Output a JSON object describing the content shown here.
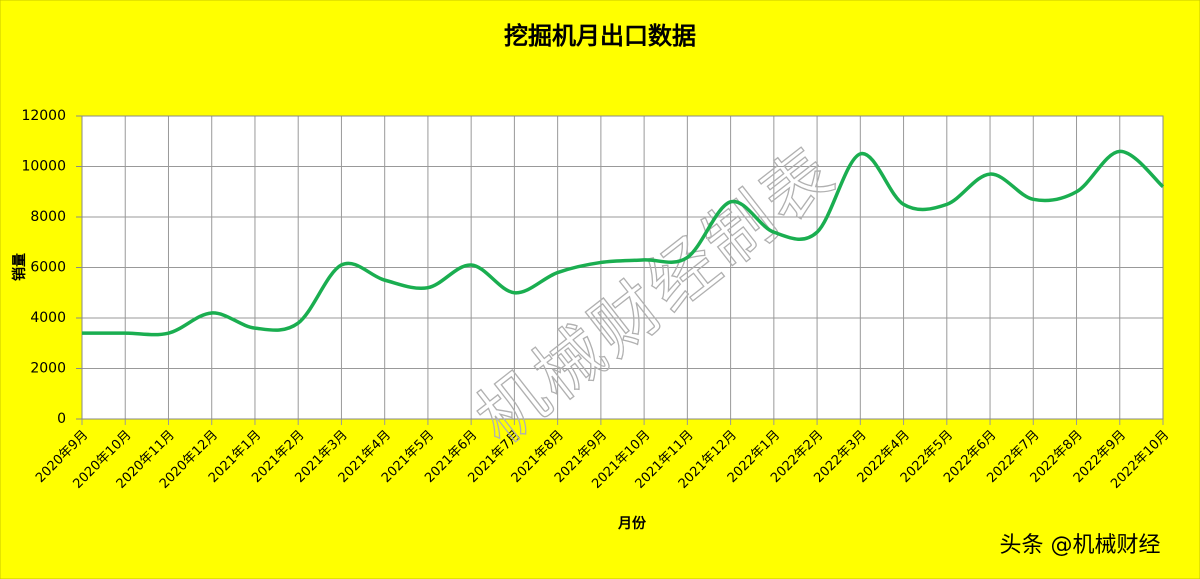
{
  "chart_data": {
    "type": "line",
    "title": "挖掘机月出口数据",
    "x_label": "月份",
    "y_label": "销量",
    "watermark": "机械财经制表",
    "source": "头条 @机械财经",
    "categories": [
      "2020年9月",
      "2020年10月",
      "2020年11月",
      "2020年12月",
      "2021年1月",
      "2021年2月",
      "2021年3月",
      "2021年4月",
      "2021年5月",
      "2021年6月",
      "2021年7月",
      "2021年8月",
      "2021年9月",
      "2021年10月",
      "2021年11月",
      "2021年12月",
      "2022年1月",
      "2022年2月",
      "2022年3月",
      "2022年4月",
      "2022年5月",
      "2022年6月",
      "2022年7月",
      "2022年8月",
      "2022年9月",
      "2022年10月"
    ],
    "series": [
      {
        "name": "销量",
        "color": "#1aae50",
        "values": [
          3400,
          3400,
          3400,
          4200,
          3600,
          3800,
          6100,
          5500,
          5200,
          6100,
          5000,
          5800,
          6200,
          6300,
          6400,
          8600,
          7400,
          7400,
          10500,
          8500,
          8500,
          9700,
          8700,
          9000,
          10600,
          9200
        ]
      }
    ],
    "ylim": [
      0,
      12000
    ],
    "yticks": [
      0,
      2000,
      4000,
      6000,
      8000,
      10000,
      12000
    ],
    "grid": true,
    "smooth": true
  }
}
